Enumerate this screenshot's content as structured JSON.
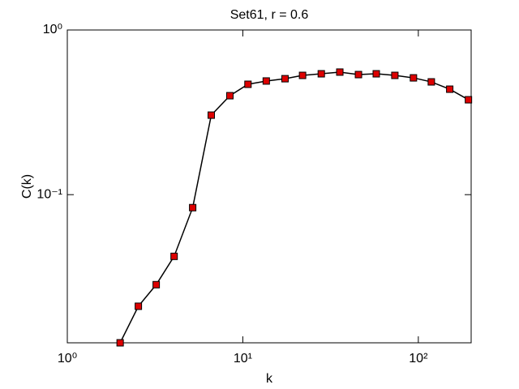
{
  "chart_data": {
    "type": "line",
    "title": "Set61, r = 0.6",
    "xlabel": "k",
    "ylabel": "C(k)",
    "xscale": "log",
    "yscale": "log",
    "x": [
      2.0,
      2.54,
      3.21,
      4.06,
      5.18,
      6.61,
      8.44,
      10.7,
      13.6,
      17.4,
      21.9,
      28,
      35.7,
      45.6,
      57.6,
      73.5,
      93.8,
      118.6,
      151,
      193
    ],
    "series": [
      {
        "name": "C(k)",
        "color": "#000000",
        "marker_color": "#dd0000",
        "values": [
          0.0126,
          0.021,
          0.0284,
          0.0422,
          0.0834,
          0.304,
          0.399,
          0.468,
          0.49,
          0.506,
          0.53,
          0.542,
          0.555,
          0.536,
          0.542,
          0.53,
          0.512,
          0.484,
          0.437,
          0.377
        ]
      }
    ],
    "xlim": [
      1,
      200
    ],
    "ylim": [
      0.0126,
      1
    ],
    "xticks": [
      {
        "value": 1,
        "label": "10⁰"
      },
      {
        "value": 10,
        "label": "10¹"
      },
      {
        "value": 100,
        "label": "10²"
      }
    ],
    "yticks": [
      {
        "value": 0.1,
        "label": "10⁻¹"
      },
      {
        "value": 1,
        "label": "10⁰"
      }
    ]
  }
}
